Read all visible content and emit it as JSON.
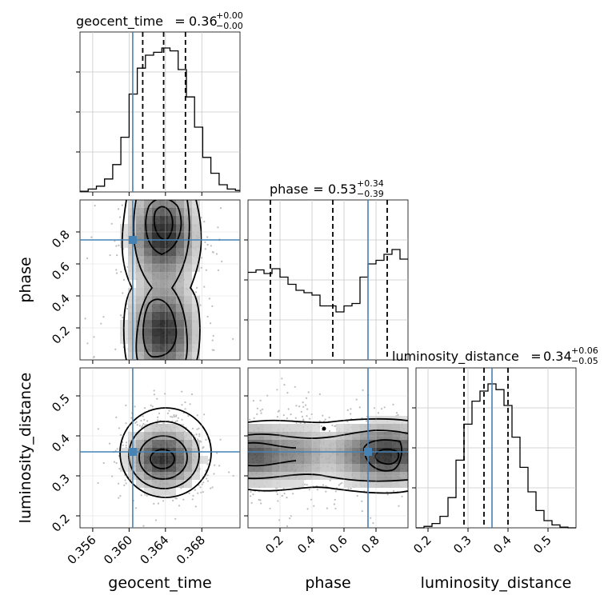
{
  "chart_data": {
    "type": "corner",
    "parameters": [
      "geocent_time",
      "phase",
      "luminosity_distance"
    ],
    "injection_color": "#4682b4",
    "hist_color": "#000000",
    "axis_labels": {
      "x": [
        "geocent_time",
        "phase",
        "luminosity_distance"
      ],
      "y": [
        "phase",
        "luminosity_distance"
      ]
    },
    "titles": [
      {
        "name": "geocent_time",
        "value": "0.36",
        "plus": "+0.00",
        "minus": "−0.00"
      },
      {
        "name": "phase",
        "value": "0.53",
        "plus": "+0.34",
        "minus": "−0.39"
      },
      {
        "name": "luminosity_distance",
        "value": "0.34",
        "plus": "+0.06",
        "minus": "−0.05"
      }
    ],
    "ranges": {
      "geocent_time": [
        0.3546,
        0.3722
      ],
      "phase": [
        0.0,
        1.0
      ],
      "luminosity_distance": [
        0.17,
        0.57
      ]
    },
    "ticks": {
      "geocent_time": [
        "0.356",
        "0.360",
        "0.364",
        "0.368"
      ],
      "phase": [
        "0.2",
        "0.4",
        "0.6",
        "0.8"
      ],
      "luminosity_distance": [
        "0.2",
        "0.3",
        "0.4",
        "0.5"
      ]
    },
    "tick_values": {
      "geocent_time": [
        0.356,
        0.36,
        0.364,
        0.368
      ],
      "phase": [
        0.2,
        0.4,
        0.6,
        0.8
      ],
      "luminosity_distance": [
        0.2,
        0.3,
        0.4,
        0.5
      ]
    },
    "injection": {
      "geocent_time": 0.3604,
      "phase": 0.75,
      "luminosity_distance": 0.36
    },
    "quantiles": {
      "geocent_time": [
        0.3615,
        0.3638,
        0.3662
      ],
      "phase": [
        0.14,
        0.53,
        0.87
      ],
      "luminosity_distance": [
        0.29,
        0.34,
        0.4
      ]
    },
    "hist_geocent_time": {
      "bin_edges": [
        0.3546,
        0.3555,
        0.3564,
        0.3573,
        0.3582,
        0.3591,
        0.36,
        0.3609,
        0.3618,
        0.3627,
        0.3636,
        0.3645,
        0.3654,
        0.3663,
        0.3672,
        0.3681,
        0.369,
        0.3699,
        0.3708,
        0.3717,
        0.3722
      ],
      "counts": [
        0.005,
        0.02,
        0.04,
        0.09,
        0.19,
        0.38,
        0.68,
        0.86,
        0.95,
        0.97,
        1.0,
        0.98,
        0.85,
        0.66,
        0.45,
        0.24,
        0.13,
        0.05,
        0.02,
        0.01
      ]
    },
    "hist_phase": {
      "bin_edges": [
        0.0,
        0.05,
        0.1,
        0.15,
        0.2,
        0.25,
        0.3,
        0.35,
        0.4,
        0.45,
        0.5,
        0.55,
        0.6,
        0.65,
        0.7,
        0.75,
        0.8,
        0.85,
        0.9,
        0.95,
        1.0
      ],
      "counts": [
        0.73,
        0.75,
        0.72,
        0.76,
        0.69,
        0.63,
        0.58,
        0.56,
        0.54,
        0.45,
        0.45,
        0.4,
        0.45,
        0.47,
        0.69,
        0.8,
        0.83,
        0.88,
        0.92,
        0.84
      ]
    },
    "hist_luminosity_distance": {
      "bin_edges": [
        0.17,
        0.19,
        0.21,
        0.23,
        0.25,
        0.27,
        0.29,
        0.31,
        0.33,
        0.35,
        0.37,
        0.39,
        0.41,
        0.43,
        0.45,
        0.47,
        0.49,
        0.51,
        0.53,
        0.55,
        0.57
      ],
      "counts": [
        0.0,
        0.01,
        0.03,
        0.08,
        0.21,
        0.47,
        0.72,
        0.88,
        0.95,
        1.0,
        0.96,
        0.85,
        0.63,
        0.42,
        0.25,
        0.12,
        0.05,
        0.02,
        0.005,
        0.0
      ]
    }
  }
}
